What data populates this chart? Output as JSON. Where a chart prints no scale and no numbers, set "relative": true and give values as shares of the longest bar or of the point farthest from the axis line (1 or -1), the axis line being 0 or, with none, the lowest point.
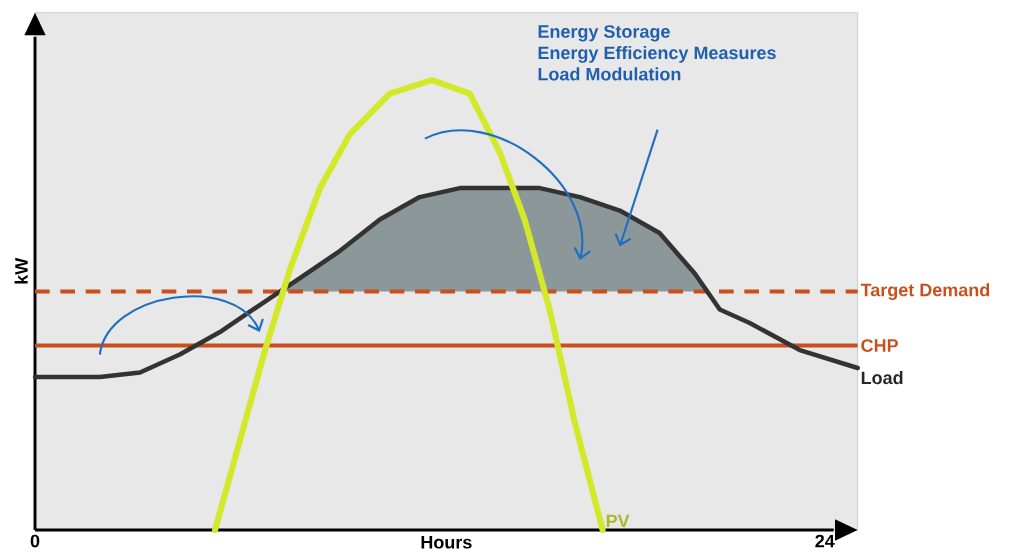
{
  "chart_data": {
    "type": "line",
    "relative": true,
    "xlabel": "Hours",
    "ylabel": "kW",
    "xlim": [
      0,
      25
    ],
    "xticks": [
      0,
      24
    ],
    "tick_labels": "x",
    "annotations": [
      "Energy Storage",
      "Energy Efficiency Measures",
      "Load Modulation"
    ],
    "series": [
      {
        "type": "area",
        "color": "#8c979a",
        "x": [
          7.44,
          8.05,
          9.26,
          10.48,
          11.69,
          12.91,
          14.12,
          15.34,
          16.56,
          17.77,
          18.98,
          20.05,
          20.43
        ],
        "values": [
          0.53,
          0.56,
          0.62,
          0.69,
          0.74,
          0.76,
          0.76,
          0.76,
          0.74,
          0.71,
          0.66,
          0.57,
          0.53
        ]
      },
      {
        "name": "Load",
        "color": "#333333",
        "x": [
          0,
          1.97,
          3.19,
          4.4,
          5.62,
          6.83,
          8.05,
          9.26,
          10.48,
          11.69,
          12.91,
          14.12,
          15.34,
          16.56,
          17.77,
          18.98,
          20.05,
          20.81,
          21.72,
          23.24,
          25.0
        ],
        "values": [
          0.34,
          0.34,
          0.35,
          0.39,
          0.44,
          0.5,
          0.56,
          0.62,
          0.69,
          0.74,
          0.76,
          0.76,
          0.76,
          0.74,
          0.71,
          0.66,
          0.57,
          0.49,
          0.46,
          0.4,
          0.36
        ]
      },
      {
        "name": "PV",
        "color": "#d4e82a",
        "x": [
          5.47,
          6.23,
          6.99,
          7.75,
          8.66,
          9.57,
          10.78,
          12.06,
          13.21,
          14.12,
          14.88,
          15.64,
          16.4,
          17.25
        ],
        "values": [
          0,
          0.2,
          0.4,
          0.58,
          0.76,
          0.88,
          0.97,
          1,
          0.97,
          0.84,
          0.69,
          0.49,
          0.24,
          0
        ]
      }
    ],
    "ref_lines": [
      {
        "axis": "y",
        "value": 0.53,
        "label": "Target Demand",
        "color": "#c8501e",
        "line_style": "dashed"
      },
      {
        "axis": "y",
        "value": 0.41,
        "label": "CHP",
        "color": "#c8501e",
        "line_style": "solid"
      }
    ]
  }
}
